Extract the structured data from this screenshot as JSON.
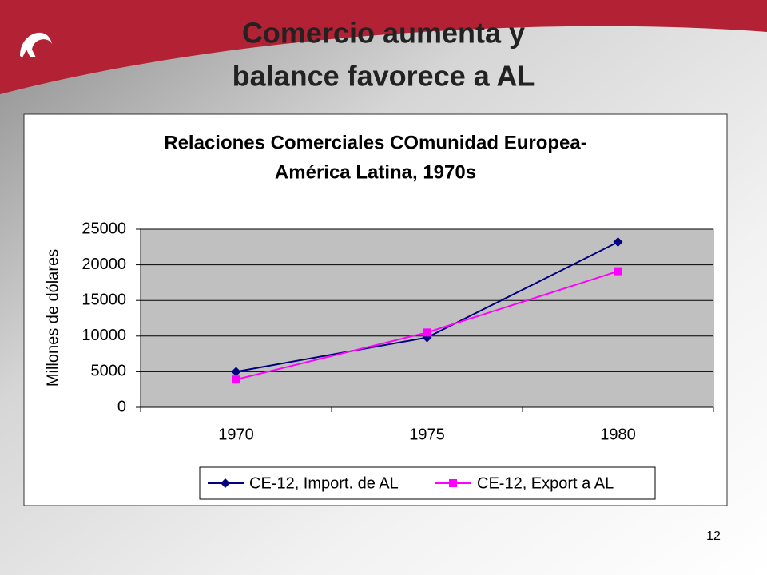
{
  "slide_title": [
    "Comercio aumenta y",
    "balance favorece a AL"
  ],
  "page_number": "12",
  "chart_data": {
    "type": "line",
    "title": [
      "Relaciones Comerciales COmunidad Europea-",
      "América Latina, 1970s"
    ],
    "y_label": "Millones de dólares",
    "categories": [
      "1970",
      "1975",
      "1980"
    ],
    "series": [
      {
        "name": "CE-12, Import. de AL",
        "color": "#000080",
        "marker": "diamond",
        "values": [
          5000,
          9800,
          23200
        ]
      },
      {
        "name": "CE-12, Export a AL",
        "color": "#ff00ff",
        "marker": "square",
        "values": [
          3900,
          10500,
          19100
        ]
      }
    ],
    "ylim": [
      0,
      25000
    ],
    "yticks": [
      0,
      5000,
      10000,
      15000,
      20000,
      25000
    ],
    "grid": true,
    "plot_background": "#c0c0c0",
    "legend": "bottom"
  }
}
